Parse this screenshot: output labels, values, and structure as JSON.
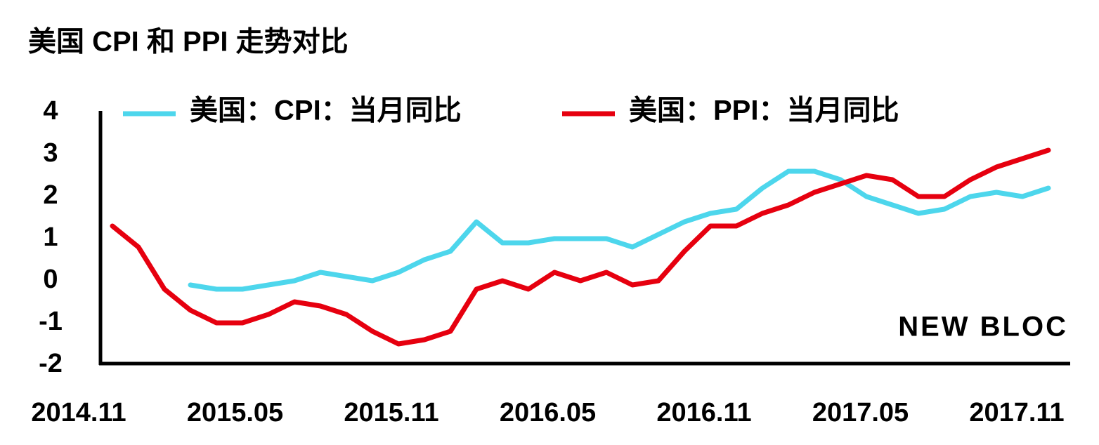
{
  "chart_data": {
    "type": "line",
    "title": "美国 CPI 和 PPI 走势对比",
    "watermark": "NEW BLOC",
    "categories": [
      "2014.11",
      null,
      null,
      null,
      null,
      null,
      "2015.05",
      null,
      null,
      null,
      null,
      null,
      "2015.11",
      null,
      null,
      null,
      null,
      null,
      "2016.05",
      null,
      null,
      null,
      null,
      null,
      "2016.11",
      null,
      null,
      null,
      null,
      null,
      "2017.05",
      null,
      null,
      null,
      null,
      null,
      "2017.11"
    ],
    "series": [
      {
        "name": "美国：CPI：当月同比",
        "color": "#4dd6ec",
        "values": [
          null,
          null,
          null,
          -0.1,
          -0.2,
          -0.2,
          -0.1,
          0.0,
          0.2,
          0.1,
          0.0,
          0.2,
          0.5,
          0.7,
          1.4,
          0.9,
          0.9,
          1.0,
          1.0,
          1.0,
          0.8,
          1.1,
          1.4,
          1.6,
          1.7,
          2.2,
          2.6,
          2.6,
          2.4,
          2.0,
          1.8,
          1.6,
          1.7,
          2.0,
          2.1,
          2.0,
          2.2
        ]
      },
      {
        "name": "美国：PPI：当月同比",
        "color": "#e6000f",
        "values": [
          1.3,
          0.8,
          -0.2,
          -0.7,
          -1.0,
          -1.0,
          -0.8,
          -0.5,
          -0.6,
          -0.8,
          -1.2,
          -1.5,
          -1.4,
          -1.2,
          -0.2,
          0.0,
          -0.2,
          0.2,
          0.0,
          0.2,
          -0.1,
          0.0,
          0.7,
          1.3,
          1.3,
          1.6,
          1.8,
          2.1,
          2.3,
          2.5,
          2.4,
          2.0,
          2.0,
          2.4,
          2.7,
          2.9,
          3.1
        ]
      }
    ],
    "ylim": [
      -2,
      4
    ],
    "yticks": [
      -2,
      -1,
      0,
      1,
      2,
      3,
      4
    ],
    "grid": false
  }
}
